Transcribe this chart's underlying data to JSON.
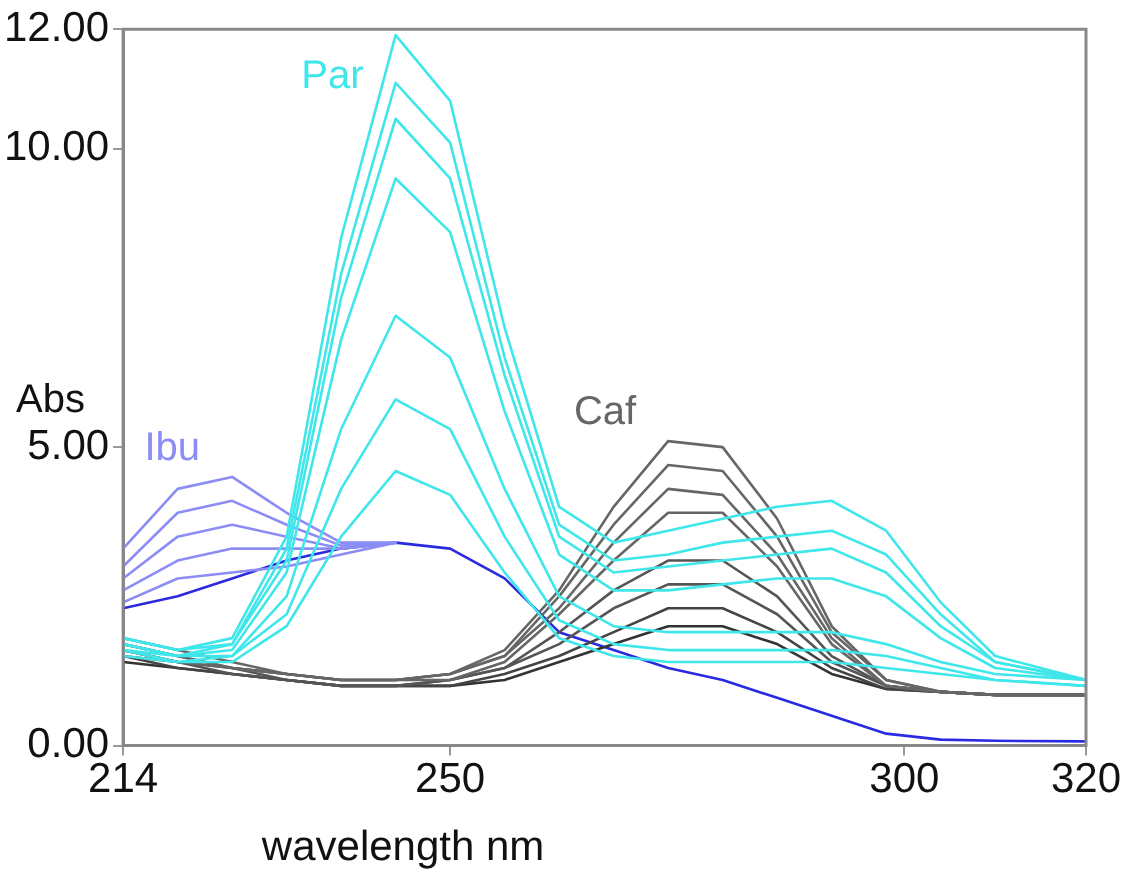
{
  "chart_data": {
    "type": "line",
    "xlabel": "wavelength nm",
    "ylabel": "Abs",
    "x": [
      214,
      220,
      226,
      232,
      238,
      244,
      250,
      256,
      262,
      268,
      274,
      280,
      286,
      292,
      298,
      304,
      310,
      320
    ],
    "xlim": [
      214,
      320
    ],
    "xticks": [
      214,
      250,
      300,
      320
    ],
    "ylim": [
      0,
      12
    ],
    "yticks": [
      {
        "value": 0,
        "label": "0.00"
      },
      {
        "value": 5,
        "label": "5.00"
      },
      {
        "value": 10,
        "label": "10.00"
      },
      {
        "value": 12,
        "label": "12.00"
      }
    ],
    "grid": false,
    "legend": false,
    "marker": "none",
    "line_style": "solid",
    "series": [
      {
        "name": "Par",
        "color": "#3fe6ea",
        "values": [
          1.8,
          1.6,
          1.8,
          3.5,
          8.5,
          11.9,
          10.8,
          7.0,
          4.0,
          3.4,
          3.6,
          3.8,
          4.0,
          4.1,
          3.6,
          2.4,
          1.5,
          1.1
        ]
      },
      {
        "color": "#3fe6ea",
        "values": [
          1.8,
          1.6,
          1.7,
          3.3,
          7.9,
          11.1,
          10.1,
          6.5,
          3.7,
          3.1,
          3.2,
          3.4,
          3.5,
          3.6,
          3.2,
          2.2,
          1.4,
          1.1
        ]
      },
      {
        "color": "#3fe6ea",
        "values": [
          1.7,
          1.5,
          1.7,
          3.1,
          7.5,
          10.5,
          9.5,
          6.2,
          3.5,
          2.9,
          3.0,
          3.1,
          3.2,
          3.3,
          2.9,
          2.0,
          1.4,
          1.1
        ]
      },
      {
        "color": "#3fe6ea",
        "values": [
          1.7,
          1.5,
          1.6,
          2.9,
          6.8,
          9.5,
          8.6,
          5.6,
          3.2,
          2.6,
          2.6,
          2.7,
          2.8,
          2.8,
          2.5,
          1.8,
          1.3,
          1.1
        ]
      },
      {
        "color": "#3fe6ea",
        "values": [
          1.6,
          1.5,
          1.5,
          2.5,
          5.3,
          7.2,
          6.5,
          4.3,
          2.5,
          2.0,
          1.9,
          1.9,
          1.9,
          1.9,
          1.7,
          1.4,
          1.2,
          1.1
        ]
      },
      {
        "color": "#3fe6ea",
        "values": [
          1.6,
          1.4,
          1.5,
          2.2,
          4.3,
          5.8,
          5.3,
          3.5,
          2.1,
          1.7,
          1.6,
          1.6,
          1.6,
          1.6,
          1.5,
          1.3,
          1.1,
          1.0
        ]
      },
      {
        "color": "#3fe6ea",
        "values": [
          1.5,
          1.4,
          1.4,
          2.0,
          3.5,
          4.6,
          4.2,
          2.9,
          1.8,
          1.5,
          1.4,
          1.4,
          1.4,
          1.4,
          1.3,
          1.2,
          1.1,
          1.0
        ]
      },
      {
        "name": "Caf",
        "color": "#666666",
        "values": [
          1.8,
          1.6,
          1.4,
          1.2,
          1.1,
          1.1,
          1.2,
          1.6,
          2.6,
          4.0,
          5.1,
          5.0,
          3.8,
          2.0,
          1.1,
          0.9,
          0.85,
          0.85
        ]
      },
      {
        "color": "#666666",
        "values": [
          1.7,
          1.5,
          1.3,
          1.2,
          1.1,
          1.1,
          1.2,
          1.5,
          2.5,
          3.7,
          4.7,
          4.6,
          3.5,
          1.9,
          1.1,
          0.9,
          0.85,
          0.85
        ]
      },
      {
        "color": "#666666",
        "values": [
          1.7,
          1.5,
          1.3,
          1.2,
          1.1,
          1.1,
          1.2,
          1.5,
          2.3,
          3.4,
          4.3,
          4.2,
          3.2,
          1.8,
          1.0,
          0.9,
          0.85,
          0.85
        ]
      },
      {
        "color": "#666666",
        "values": [
          1.6,
          1.4,
          1.3,
          1.2,
          1.1,
          1.1,
          1.1,
          1.4,
          2.2,
          3.1,
          3.9,
          3.9,
          3.0,
          1.7,
          1.0,
          0.9,
          0.85,
          0.85
        ]
      },
      {
        "color": "#555555",
        "values": [
          1.6,
          1.4,
          1.3,
          1.1,
          1.0,
          1.0,
          1.1,
          1.3,
          1.9,
          2.6,
          3.1,
          3.1,
          2.5,
          1.5,
          1.0,
          0.9,
          0.85,
          0.85
        ]
      },
      {
        "color": "#555555",
        "values": [
          1.5,
          1.4,
          1.2,
          1.1,
          1.0,
          1.0,
          1.1,
          1.3,
          1.7,
          2.3,
          2.7,
          2.7,
          2.2,
          1.4,
          1.0,
          0.9,
          0.85,
          0.85
        ]
      },
      {
        "color": "#444444",
        "values": [
          1.5,
          1.3,
          1.2,
          1.1,
          1.0,
          1.0,
          1.0,
          1.2,
          1.5,
          1.9,
          2.3,
          2.3,
          1.9,
          1.3,
          0.95,
          0.9,
          0.85,
          0.85
        ]
      },
      {
        "color": "#333333",
        "values": [
          1.4,
          1.3,
          1.2,
          1.1,
          1.0,
          1.0,
          1.0,
          1.1,
          1.4,
          1.7,
          2.0,
          2.0,
          1.7,
          1.2,
          0.95,
          0.9,
          0.85,
          0.85
        ]
      },
      {
        "name": "Ibu",
        "color": "#8c8cf5",
        "x": [
          214,
          220,
          226,
          232,
          238,
          244
        ],
        "values": [
          3.3,
          4.3,
          4.5,
          3.9,
          3.4,
          3.4
        ]
      },
      {
        "color": "#8c8cf5",
        "x": [
          214,
          220,
          226,
          232,
          238,
          244
        ],
        "values": [
          3.0,
          3.9,
          4.1,
          3.7,
          3.35,
          3.4
        ]
      },
      {
        "color": "#8c8cf5",
        "x": [
          214,
          220,
          226,
          232,
          238,
          244
        ],
        "values": [
          2.8,
          3.5,
          3.7,
          3.5,
          3.3,
          3.4
        ]
      },
      {
        "color": "#8c8cf5",
        "x": [
          214,
          220,
          226,
          232,
          238,
          244
        ],
        "values": [
          2.6,
          3.1,
          3.3,
          3.3,
          3.3,
          3.4
        ]
      },
      {
        "color": "#8c8cf5",
        "x": [
          214,
          220,
          226,
          232,
          238,
          244
        ],
        "values": [
          2.4,
          2.8,
          2.9,
          3.0,
          3.2,
          3.4
        ]
      },
      {
        "color": "#2a2ae0",
        "values": [
          2.3,
          2.5,
          2.8,
          3.1,
          3.3,
          3.4,
          3.3,
          2.8,
          1.9,
          1.6,
          1.3,
          1.1,
          0.8,
          0.5,
          0.2,
          0.1,
          0.08,
          0.07
        ]
      }
    ]
  }
}
